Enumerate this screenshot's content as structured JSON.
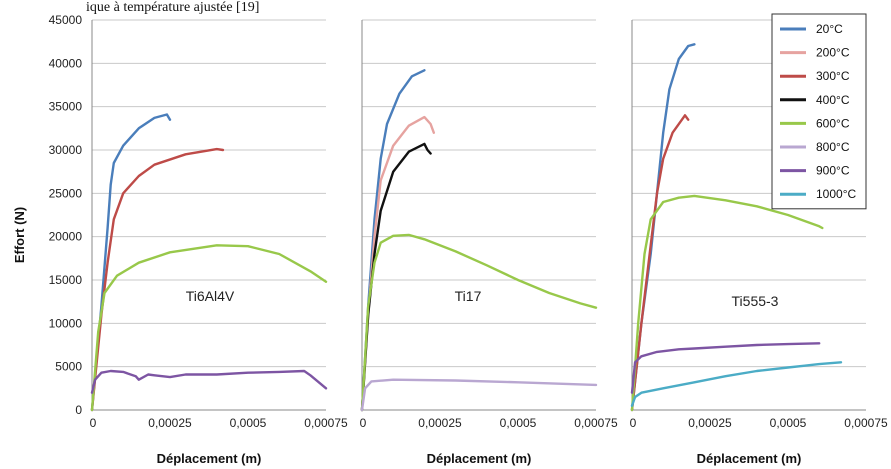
{
  "header_fragment": "ique à température ajustée [19]",
  "chart_data": {
    "type": "line",
    "ylabel": "Effort (N)",
    "ylim": [
      0,
      45000
    ],
    "yticks": [
      "0",
      "5000",
      "10000",
      "15000",
      "20000",
      "25000",
      "30000",
      "35000",
      "40000",
      "45000"
    ],
    "ytick_values": [
      0,
      5000,
      10000,
      15000,
      20000,
      25000,
      30000,
      35000,
      40000,
      45000
    ],
    "grid": true,
    "legend_position": "top-right",
    "legend": [
      {
        "label": "20°C",
        "color": "#4a7ebb"
      },
      {
        "label": "200°C",
        "color": "#e6a3a0"
      },
      {
        "label": "300°C",
        "color": "#be4b48"
      },
      {
        "label": "400°C",
        "color": "#111111"
      },
      {
        "label": "600°C",
        "color": "#98c84a"
      },
      {
        "label": "800°C",
        "color": "#b9a7d1"
      },
      {
        "label": "900°C",
        "color": "#7d55a3"
      },
      {
        "label": "1000°C",
        "color": "#4bacc6"
      }
    ],
    "panels": [
      {
        "label": "Ti6Al4V",
        "xlabel": "Déplacement (m)",
        "xlim": [
          0,
          0.00075
        ],
        "xticks": [
          "0",
          "0,00025",
          "0,0005",
          "0,00075"
        ],
        "xtick_values": [
          0,
          0.00025,
          0.0005,
          0.00075
        ],
        "series": [
          {
            "name": "20°C",
            "color": "#4a7ebb",
            "points": [
              [
                0,
                0
              ],
              [
                3e-05,
                12000
              ],
              [
                5e-05,
                21000
              ],
              [
                6e-05,
                26000
              ],
              [
                7e-05,
                28500
              ],
              [
                0.0001,
                30500
              ],
              [
                0.00015,
                32500
              ],
              [
                0.0002,
                33700
              ],
              [
                0.00024,
                34100
              ],
              [
                0.00025,
                33500
              ]
            ]
          },
          {
            "name": "300°C",
            "color": "#be4b48",
            "points": [
              [
                0,
                0
              ],
              [
                3e-05,
                11000
              ],
              [
                5e-05,
                17000
              ],
              [
                7e-05,
                22000
              ],
              [
                0.0001,
                25000
              ],
              [
                0.00015,
                27000
              ],
              [
                0.0002,
                28300
              ],
              [
                0.0003,
                29500
              ],
              [
                0.0004,
                30100
              ],
              [
                0.00042,
                30000
              ]
            ]
          },
          {
            "name": "600°C",
            "color": "#98c84a",
            "points": [
              [
                0,
                0
              ],
              [
                2e-05,
                9000
              ],
              [
                4e-05,
                13500
              ],
              [
                8e-05,
                15500
              ],
              [
                0.00015,
                17000
              ],
              [
                0.00025,
                18200
              ],
              [
                0.0004,
                19000
              ],
              [
                0.0005,
                18900
              ],
              [
                0.0006,
                18000
              ],
              [
                0.0007,
                16000
              ],
              [
                0.00075,
                14800
              ]
            ]
          },
          {
            "name": "900°C",
            "color": "#7d55a3",
            "points": [
              [
                0,
                2000
              ],
              [
                1e-05,
                3500
              ],
              [
                3e-05,
                4300
              ],
              [
                6e-05,
                4500
              ],
              [
                0.0001,
                4400
              ],
              [
                0.00014,
                3900
              ],
              [
                0.00015,
                3500
              ],
              [
                0.00018,
                4100
              ],
              [
                0.0002,
                4000
              ],
              [
                0.00025,
                3800
              ],
              [
                0.0003,
                4100
              ],
              [
                0.0004,
                4100
              ],
              [
                0.0005,
                4300
              ],
              [
                0.0006,
                4400
              ],
              [
                0.00068,
                4500
              ],
              [
                0.0007,
                4000
              ],
              [
                0.00075,
                2500
              ]
            ]
          }
        ]
      },
      {
        "label": "Ti17",
        "xlabel": "Déplacement (m)",
        "xlim": [
          0,
          0.00075
        ],
        "xticks": [
          "0",
          "0,00025",
          "0,0005",
          "0,00075"
        ],
        "xtick_values": [
          0,
          0.00025,
          0.0005,
          0.00075
        ],
        "series": [
          {
            "name": "20°C",
            "color": "#4a7ebb",
            "points": [
              [
                0,
                0
              ],
              [
                2e-05,
                12000
              ],
              [
                4e-05,
                22000
              ],
              [
                6e-05,
                29000
              ],
              [
                8e-05,
                33000
              ],
              [
                0.00012,
                36500
              ],
              [
                0.00016,
                38500
              ],
              [
                0.0002,
                39200
              ]
            ]
          },
          {
            "name": "200°C",
            "color": "#e6a3a0",
            "points": [
              [
                0,
                0
              ],
              [
                2e-05,
                11000
              ],
              [
                4e-05,
                20000
              ],
              [
                6e-05,
                26500
              ],
              [
                0.0001,
                30500
              ],
              [
                0.00015,
                32800
              ],
              [
                0.0002,
                33800
              ],
              [
                0.00022,
                33000
              ],
              [
                0.00023,
                32000
              ]
            ]
          },
          {
            "name": "400°C",
            "color": "#111111",
            "points": [
              [
                0,
                0
              ],
              [
                2e-05,
                11000
              ],
              [
                4e-05,
                18000
              ],
              [
                6e-05,
                23000
              ],
              [
                0.0001,
                27500
              ],
              [
                0.00015,
                29800
              ],
              [
                0.0002,
                30700
              ],
              [
                0.00021,
                30000
              ],
              [
                0.00022,
                29600
              ]
            ]
          },
          {
            "name": "600°C",
            "color": "#98c84a",
            "points": [
              [
                0,
                0
              ],
              [
                2e-05,
                12000
              ],
              [
                4e-05,
                17000
              ],
              [
                6e-05,
                19300
              ],
              [
                0.0001,
                20100
              ],
              [
                0.00015,
                20200
              ],
              [
                0.0002,
                19700
              ],
              [
                0.0003,
                18300
              ],
              [
                0.0004,
                16700
              ],
              [
                0.0005,
                15000
              ],
              [
                0.0006,
                13500
              ],
              [
                0.0007,
                12300
              ],
              [
                0.00075,
                11800
              ]
            ]
          },
          {
            "name": "800°C",
            "color": "#b9a7d1",
            "points": [
              [
                0,
                0
              ],
              [
                1e-05,
                2500
              ],
              [
                3e-05,
                3300
              ],
              [
                0.0001,
                3500
              ],
              [
                0.0003,
                3400
              ],
              [
                0.0005,
                3200
              ],
              [
                0.00075,
                2900
              ]
            ]
          }
        ]
      },
      {
        "label": "Ti555-3",
        "xlabel": "Déplacement (m)",
        "xlim": [
          0,
          0.00075
        ],
        "xticks": [
          "0",
          "0,00025",
          "0,0005",
          "0,00075"
        ],
        "xtick_values": [
          0,
          0.00025,
          0.0005,
          0.00075
        ],
        "series": [
          {
            "name": "20°C",
            "color": "#4a7ebb",
            "points": [
              [
                0,
                0
              ],
              [
                3e-05,
                10000
              ],
              [
                6e-05,
                18000
              ],
              [
                8e-05,
                25000
              ],
              [
                0.0001,
                32000
              ],
              [
                0.00012,
                37000
              ],
              [
                0.00015,
                40500
              ],
              [
                0.00018,
                42000
              ],
              [
                0.0002,
                42200
              ]
            ]
          },
          {
            "name": "300°C",
            "color": "#be4b48",
            "points": [
              [
                0,
                0
              ],
              [
                3e-05,
                10000
              ],
              [
                6e-05,
                19000
              ],
              [
                8e-05,
                25000
              ],
              [
                0.0001,
                29000
              ],
              [
                0.00013,
                32000
              ],
              [
                0.00016,
                33500
              ],
              [
                0.00017,
                34000
              ],
              [
                0.00018,
                33500
              ]
            ]
          },
          {
            "name": "600°C",
            "color": "#98c84a",
            "points": [
              [
                0,
                0
              ],
              [
                2e-05,
                10000
              ],
              [
                4e-05,
                18000
              ],
              [
                6e-05,
                22000
              ],
              [
                0.0001,
                24000
              ],
              [
                0.00015,
                24500
              ],
              [
                0.0002,
                24700
              ],
              [
                0.0003,
                24200
              ],
              [
                0.0004,
                23500
              ],
              [
                0.0005,
                22500
              ],
              [
                0.0006,
                21200
              ],
              [
                0.00061,
                21000
              ]
            ]
          },
          {
            "name": "900°C",
            "color": "#7d55a3",
            "points": [
              [
                0,
                2000
              ],
              [
                1e-05,
                5500
              ],
              [
                3e-05,
                6200
              ],
              [
                8e-05,
                6700
              ],
              [
                0.00015,
                7000
              ],
              [
                0.0002,
                7100
              ],
              [
                0.0003,
                7300
              ],
              [
                0.0004,
                7500
              ],
              [
                0.0005,
                7600
              ],
              [
                0.0006,
                7700
              ]
            ]
          },
          {
            "name": "1000°C",
            "color": "#4bacc6",
            "points": [
              [
                0,
                500
              ],
              [
                1e-05,
                1500
              ],
              [
                3e-05,
                2000
              ],
              [
                0.0001,
                2500
              ],
              [
                0.0002,
                3200
              ],
              [
                0.0003,
                3900
              ],
              [
                0.0004,
                4500
              ],
              [
                0.0005,
                4900
              ],
              [
                0.00055,
                5100
              ],
              [
                0.0006,
                5300
              ],
              [
                0.00067,
                5500
              ]
            ]
          }
        ]
      }
    ]
  }
}
